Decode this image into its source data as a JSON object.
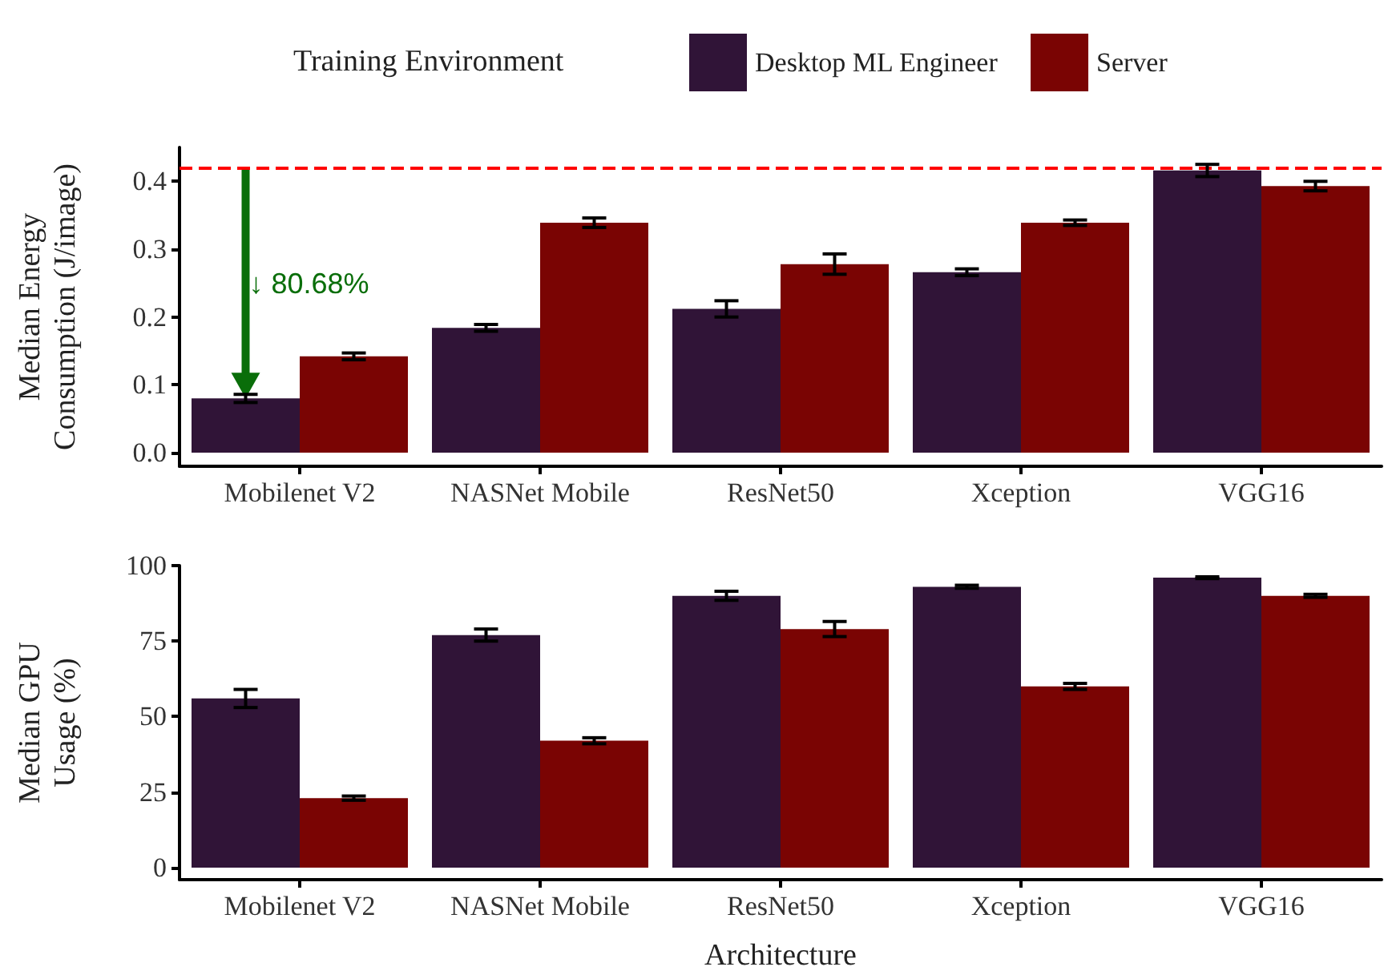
{
  "chart_data": [
    {
      "type": "bar",
      "legend_title": "Training Environment",
      "ylabel": "Median Energy\nConsumption (J/image)",
      "categories": [
        "Mobilenet V2",
        "NASNet Mobile",
        "ResNet50",
        "Xception",
        "VGG16"
      ],
      "series": [
        {
          "name": "Desktop ML Engineer",
          "color": "#301437",
          "values": [
            0.08,
            0.184,
            0.212,
            0.266,
            0.416
          ],
          "errors": [
            0.006,
            0.005,
            0.012,
            0.005,
            0.009
          ]
        },
        {
          "name": "Server",
          "color": "#7a0403",
          "values": [
            0.142,
            0.339,
            0.278,
            0.339,
            0.393
          ],
          "errors": [
            0.005,
            0.007,
            0.015,
            0.004,
            0.007
          ]
        }
      ],
      "ylim": [
        -0.02,
        0.45
      ],
      "yticks": [
        {
          "value": 0,
          "label": "0.0"
        },
        0.1,
        0.2,
        0.3,
        0.4
      ],
      "ref_lines": [
        {
          "axis": "y",
          "value": 0.418,
          "color": "#ff0000",
          "line_style": "dashed"
        }
      ],
      "annotations": [
        "↓ 80.68%"
      ],
      "grid": false,
      "legend": "top"
    },
    {
      "type": "bar",
      "xlabel": "Architecture",
      "ylabel": "Median GPU\nUsage (%)",
      "categories": [
        "Mobilenet V2",
        "NASNet Mobile",
        "ResNet50",
        "Xception",
        "VGG16"
      ],
      "series": [
        {
          "color": "#301437",
          "values": [
            56,
            77,
            90,
            93,
            96
          ],
          "errors": [
            3,
            2,
            1.5,
            0.5,
            0.3
          ]
        },
        {
          "color": "#7a0403",
          "values": [
            23,
            42,
            79,
            60,
            90
          ],
          "errors": [
            0.7,
            1,
            2.5,
            1,
            0.5
          ]
        }
      ],
      "ylim": [
        -4,
        100
      ],
      "yticks": [
        0,
        25,
        50,
        75,
        100
      ],
      "grid": false,
      "legend": false
    }
  ]
}
